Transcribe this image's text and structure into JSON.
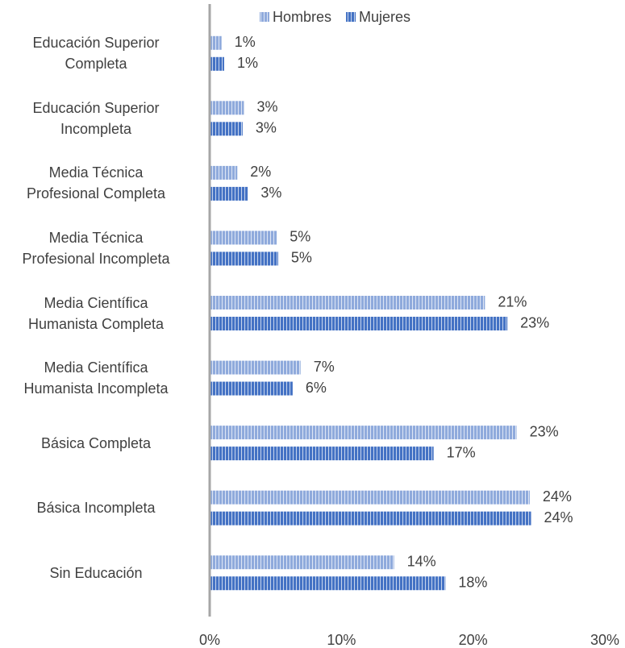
{
  "chart_data": {
    "type": "barh",
    "categories": [
      "Educación Superior\nCompleta",
      "Educación Superior\nIncompleta",
      "Media Técnica\nProfesional Completa",
      "Media Técnica\nProfesional Incompleta",
      "Media Científica\nHumanista Completa",
      "Media Científica\nHumanista Incompleta",
      "Básica Completa",
      "Básica Incompleta",
      "Sin Educación"
    ],
    "series": [
      {
        "name": "Hombres",
        "color": "#8faadc",
        "values": [
          0.9,
          2.6,
          2.1,
          5.1,
          20.9,
          6.9,
          23.3,
          24.3,
          14.0
        ],
        "value_labels": [
          "1%",
          "3%",
          "2%",
          "5%",
          "21%",
          "7%",
          "23%",
          "24%",
          "14%"
        ]
      },
      {
        "name": "Mujeres",
        "color": "#4472c4",
        "values": [
          1.1,
          2.5,
          2.9,
          5.2,
          22.6,
          6.3,
          17.0,
          24.4,
          17.9
        ],
        "value_labels": [
          "1%",
          "3%",
          "3%",
          "5%",
          "23%",
          "6%",
          "17%",
          "24%",
          "18%"
        ]
      }
    ],
    "xlim": [
      0,
      30
    ],
    "xticks": [
      {
        "value": 0,
        "label": "0%"
      },
      {
        "value": 10,
        "label": "10%"
      },
      {
        "value": 20,
        "label": "20%"
      },
      {
        "value": 30,
        "label": "30%"
      }
    ],
    "grid": false,
    "legend": "top"
  }
}
